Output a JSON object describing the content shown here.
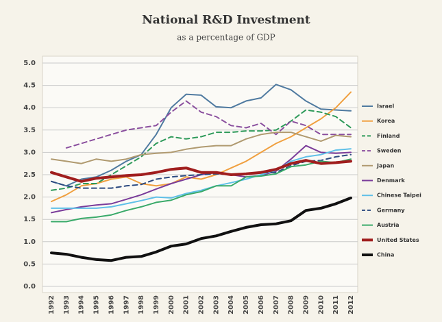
{
  "chart_data": {
    "type": "line",
    "title": "National R&D Investment",
    "subtitle": "as a percentage of GDP",
    "x": [
      1992,
      1993,
      1994,
      1995,
      1996,
      1997,
      1998,
      1999,
      2000,
      2001,
      2002,
      2003,
      2004,
      2005,
      2006,
      2007,
      2008,
      2009,
      2010,
      2011,
      2012
    ],
    "xlim": [
      1992,
      2012
    ],
    "ylim": [
      0,
      5
    ],
    "yticks": [
      {
        "value": 0,
        "label": "0.0"
      },
      0.5,
      {
        "value": 1,
        "label": "1.0"
      },
      1.5,
      {
        "value": 2,
        "label": "2.0"
      },
      2.5,
      {
        "value": 3,
        "label": "3.0"
      },
      3.5,
      {
        "value": 4,
        "label": "4.0"
      },
      4.5,
      {
        "value": 5,
        "label": "5.0"
      }
    ],
    "grid": true,
    "legend": "right",
    "series": [
      {
        "name": "Israel",
        "color": "#4f7aa0",
        "dashed": false,
        "width": 2,
        "values": [
          2.35,
          2.25,
          2.4,
          2.45,
          2.6,
          2.8,
          2.95,
          3.4,
          4.0,
          4.3,
          4.28,
          4.02,
          4.0,
          4.15,
          4.22,
          4.52,
          4.4,
          4.15,
          3.97,
          3.95,
          3.93
        ]
      },
      {
        "name": "Korea",
        "color": "#f0a040",
        "dashed": false,
        "width": 2,
        "values": [
          1.9,
          2.05,
          2.25,
          2.3,
          2.4,
          2.45,
          2.3,
          2.25,
          2.3,
          2.45,
          2.4,
          2.5,
          2.65,
          2.8,
          3.0,
          3.2,
          3.35,
          3.55,
          3.75,
          4.0,
          4.35
        ]
      },
      {
        "name": "Finland",
        "color": "#2e9a5a",
        "dashed": true,
        "width": 2,
        "values": [
          2.15,
          2.2,
          2.3,
          2.3,
          2.5,
          2.7,
          2.9,
          3.2,
          3.35,
          3.3,
          3.35,
          3.45,
          3.45,
          3.48,
          3.48,
          3.5,
          3.7,
          3.95,
          3.9,
          3.8,
          3.55
        ]
      },
      {
        "name": "Sweden",
        "color": "#8a4f9e",
        "dashed": true,
        "width": 2,
        "values": [
          null,
          3.1,
          3.2,
          3.3,
          3.4,
          3.5,
          3.55,
          3.6,
          3.9,
          4.15,
          3.9,
          3.8,
          3.6,
          3.55,
          3.65,
          3.4,
          3.7,
          3.6,
          3.4,
          3.4,
          3.4
        ]
      },
      {
        "name": "Japan",
        "color": "#b09a70",
        "dashed": false,
        "width": 2,
        "values": [
          2.85,
          2.8,
          2.75,
          2.85,
          2.8,
          2.85,
          2.95,
          2.98,
          3.0,
          3.07,
          3.12,
          3.15,
          3.15,
          3.3,
          3.4,
          3.45,
          3.45,
          3.35,
          3.25,
          3.38,
          3.35
        ]
      },
      {
        "name": "Denmark",
        "color": "#7a3c9a",
        "dashed": false,
        "width": 2,
        "values": [
          1.65,
          1.72,
          1.78,
          1.82,
          1.85,
          1.95,
          2.05,
          2.18,
          2.3,
          2.4,
          2.5,
          2.55,
          2.5,
          2.45,
          2.48,
          2.58,
          2.85,
          3.15,
          3.0,
          2.98,
          3.0
        ]
      },
      {
        "name": "Chinese Taipei",
        "color": "#5fc0e8",
        "dashed": false,
        "width": 2,
        "values": [
          1.75,
          1.75,
          1.75,
          1.75,
          1.78,
          1.85,
          1.92,
          2.0,
          1.98,
          2.08,
          2.15,
          2.25,
          2.32,
          2.4,
          2.5,
          2.6,
          2.8,
          2.9,
          2.95,
          3.05,
          3.08
        ]
      },
      {
        "name": "Germany",
        "color": "#2c4a80",
        "dashed": true,
        "width": 2,
        "values": [
          2.35,
          2.25,
          2.2,
          2.2,
          2.2,
          2.25,
          2.28,
          2.4,
          2.45,
          2.48,
          2.5,
          2.52,
          2.5,
          2.5,
          2.55,
          2.55,
          2.7,
          2.8,
          2.82,
          2.9,
          2.95
        ]
      },
      {
        "name": "Austria",
        "color": "#3aaa6a",
        "dashed": false,
        "width": 2,
        "values": [
          1.45,
          1.45,
          1.52,
          1.55,
          1.6,
          1.7,
          1.78,
          1.88,
          1.93,
          2.05,
          2.12,
          2.25,
          2.25,
          2.45,
          2.47,
          2.52,
          2.68,
          2.72,
          2.8,
          2.77,
          2.85
        ]
      },
      {
        "name": "United States",
        "color": "#a01e1e",
        "dashed": false,
        "width": 4,
        "values": [
          2.55,
          2.45,
          2.35,
          2.42,
          2.45,
          2.48,
          2.5,
          2.55,
          2.62,
          2.65,
          2.55,
          2.55,
          2.5,
          2.52,
          2.55,
          2.62,
          2.75,
          2.82,
          2.75,
          2.77,
          2.8
        ]
      },
      {
        "name": "China",
        "color": "#111111",
        "dashed": false,
        "width": 4,
        "values": [
          0.75,
          0.72,
          0.65,
          0.6,
          0.58,
          0.65,
          0.67,
          0.77,
          0.9,
          0.95,
          1.07,
          1.13,
          1.23,
          1.32,
          1.38,
          1.4,
          1.47,
          1.7,
          1.75,
          1.85,
          1.98
        ]
      }
    ]
  }
}
